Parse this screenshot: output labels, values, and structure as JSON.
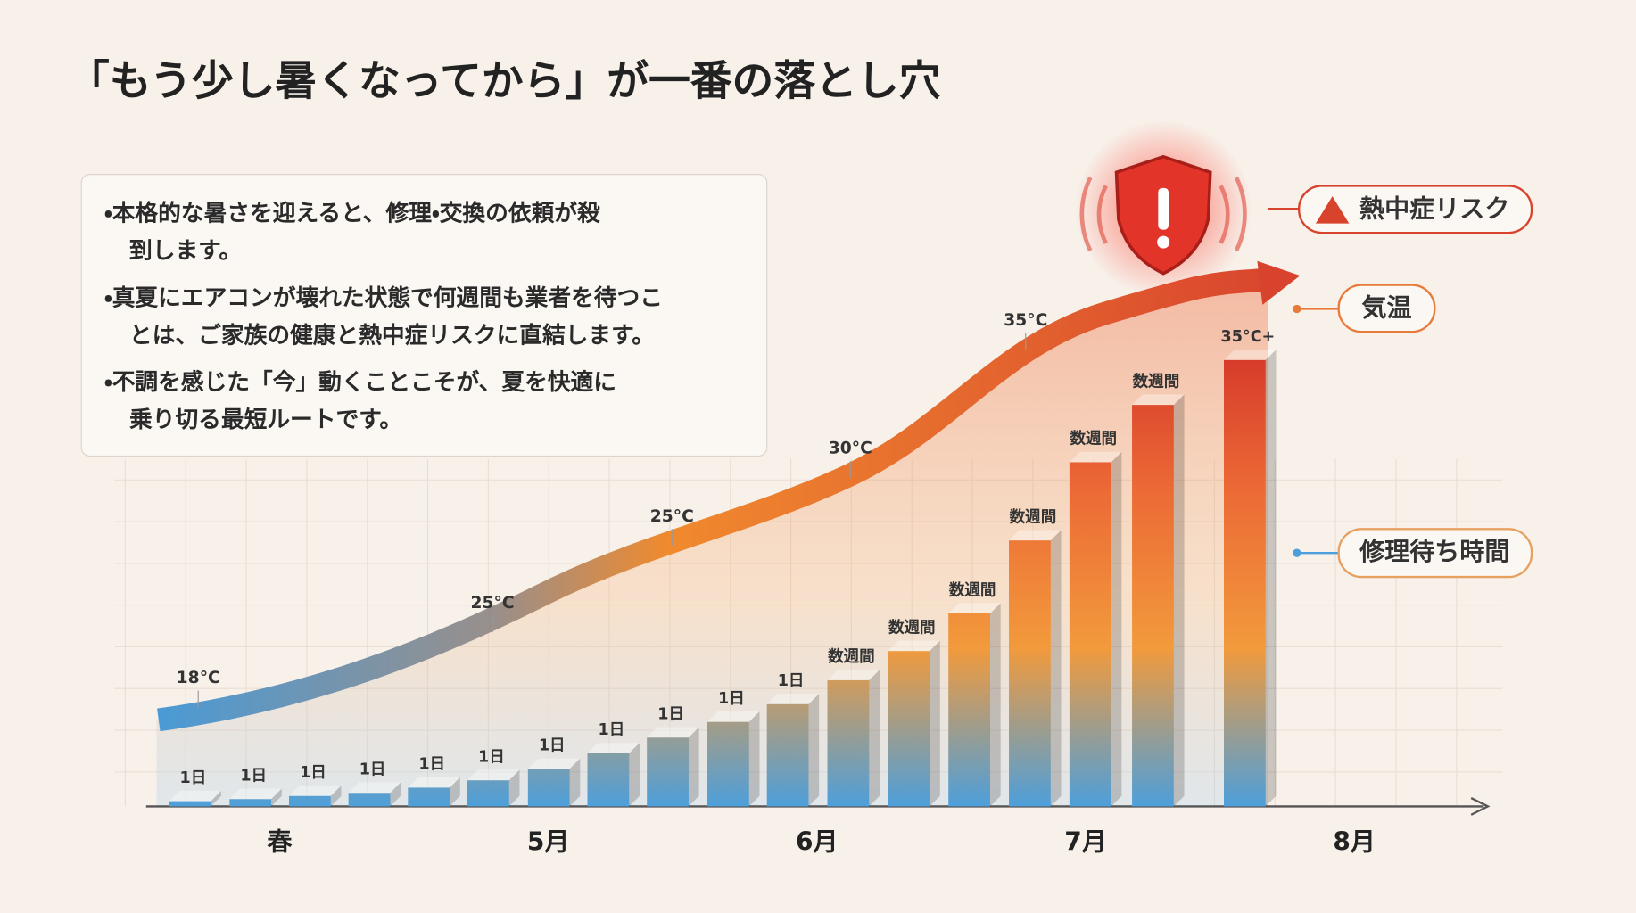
{
  "title": "「もう少し暑くなってから」が一番の落とし穴",
  "notes": [
    [
      "・本格的な暑さを迎えると、修理・交換の依頼が殺",
      "到します。"
    ],
    [
      "・真夏にエアコンが壊れた状態で何週間も業者を待つこ",
      "とは、ご家族の健康と熱中症リスクに直結します。"
    ],
    [
      "・不調を感じた「今」動くことこそが、夏を快適に",
      "乗り切る最短ルートです。"
    ]
  ],
  "callouts": {
    "risk": "熱中症リスク",
    "temperature": "気温",
    "wait": "修理待ち時間"
  },
  "temperature_labels": [
    "18°C",
    "25°C",
    "25°C",
    "30°C",
    "35°C"
  ],
  "bar_labels": [
    "1日",
    "1日",
    "1日",
    "1日",
    "1日",
    "1日",
    "1日",
    "1日",
    "1日",
    "1日",
    "1日",
    "数週間",
    "数週間",
    "数週間",
    "数週間",
    "数週間",
    "数週間",
    "35°C+"
  ],
  "x_labels": [
    "春",
    "5月",
    "6月",
    "7月",
    "8月"
  ]
}
